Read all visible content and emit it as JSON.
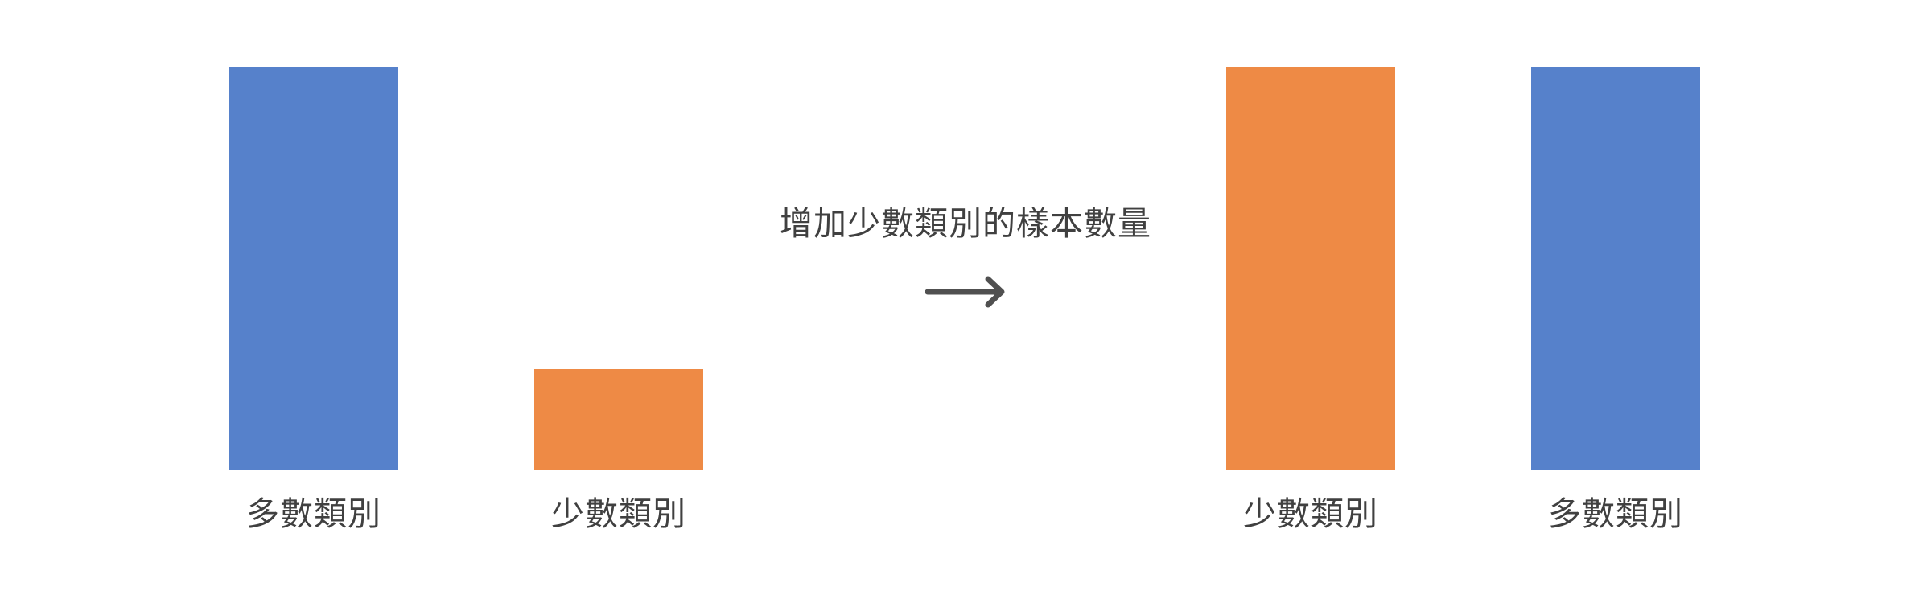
{
  "left_group": {
    "bars": [
      {
        "label": "多數類別",
        "value": 1.0,
        "color": "#5681CB"
      },
      {
        "label": "少數類別",
        "value": 0.25,
        "color": "#EE8A45"
      }
    ]
  },
  "transition": {
    "caption": "增加少數類別的樣本數量",
    "icon": "right-arrow-icon"
  },
  "right_group": {
    "bars": [
      {
        "label": "少數類別",
        "value": 1.0,
        "color": "#EE8A45"
      },
      {
        "label": "多數類別",
        "value": 1.0,
        "color": "#5681CB"
      }
    ]
  }
}
